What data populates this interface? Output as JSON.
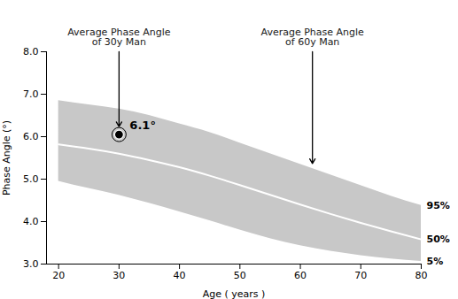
{
  "chart_data": {
    "type": "area",
    "xlabel": "Age ( years )",
    "ylabel": "Phase Angle (°)",
    "x": [
      20,
      25,
      30,
      35,
      40,
      45,
      50,
      55,
      60,
      65,
      70,
      75,
      80
    ],
    "series": [
      {
        "name": "95%",
        "color": "#c8c8c8",
        "values": [
          6.85,
          6.75,
          6.65,
          6.5,
          6.3,
          6.1,
          5.85,
          5.6,
          5.35,
          5.1,
          4.85,
          4.6,
          4.38
        ]
      },
      {
        "name": "50%",
        "color": "#ffffff",
        "type": "line",
        "values": [
          5.82,
          5.72,
          5.6,
          5.45,
          5.28,
          5.08,
          4.86,
          4.63,
          4.4,
          4.18,
          3.97,
          3.77,
          3.58
        ]
      },
      {
        "name": "5%",
        "color": "#c8c8c8",
        "values": [
          4.95,
          4.78,
          4.62,
          4.43,
          4.23,
          4.02,
          3.8,
          3.6,
          3.43,
          3.3,
          3.2,
          3.12,
          3.06
        ]
      }
    ],
    "points": [
      {
        "x": 30,
        "y": 6.05,
        "label": "6.1°"
      }
    ],
    "annotations": [
      {
        "text": "Average Phase Angle\nof 30y Man",
        "x": 30,
        "y": 6.05,
        "color": "#1c2d5e"
      },
      {
        "text": "Average Phase Angle\nof 60y Man",
        "x": 62,
        "y": 5.18,
        "color": "#1c2d5e"
      }
    ],
    "xlim": [
      18,
      80
    ],
    "ylim": [
      3.0,
      8.0
    ],
    "xticks": [
      20,
      30,
      40,
      50,
      60,
      70,
      80
    ],
    "yticks": [
      {
        "value": 3.0,
        "label": "3.0"
      },
      {
        "value": 4.0,
        "label": "4.0"
      },
      {
        "value": 5.0,
        "label": "5.0"
      },
      {
        "value": 6.0,
        "label": "6.0"
      },
      {
        "value": 7.0,
        "label": "7.0"
      },
      {
        "value": 8.0,
        "label": "8.0"
      }
    ],
    "grid": false
  }
}
